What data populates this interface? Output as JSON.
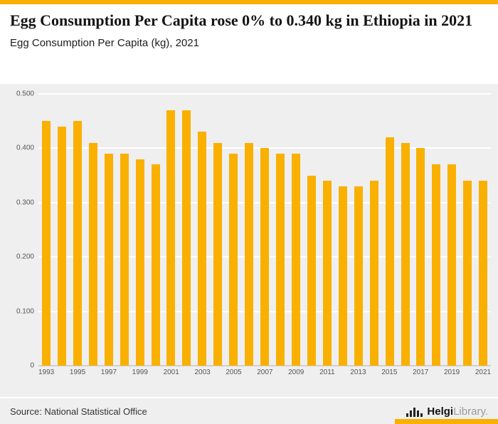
{
  "page": {
    "accent_color": "#F9B000",
    "title": "Egg Consumption Per Capita rose 0% to 0.340 kg in Ethiopia in 2021",
    "subtitle": "Egg Consumption Per Capita (kg), 2021",
    "source": "Source: National Statistical Office",
    "logo": {
      "bold": "Helgi",
      "light": "Library."
    }
  },
  "chart_data": {
    "type": "bar",
    "title": "Egg Consumption Per Capita rose 0% to 0.340 kg in Ethiopia in 2021",
    "subtitle": "Egg Consumption Per Capita (kg), 2021",
    "xlabel": "",
    "ylabel": "",
    "ylim": [
      0,
      0.5
    ],
    "yticks": [
      0,
      0.1,
      0.2,
      0.3,
      0.4,
      0.5
    ],
    "ytick_labels": [
      "0",
      "0.100",
      "0.200",
      "0.300",
      "0.400",
      "0.500"
    ],
    "grid": true,
    "plot_bg": "#EFEFEF",
    "bar_color": "#F9B000",
    "categories": [
      1993,
      1994,
      1995,
      1996,
      1997,
      1998,
      1999,
      2000,
      2001,
      2002,
      2003,
      2004,
      2005,
      2006,
      2007,
      2008,
      2009,
      2010,
      2011,
      2012,
      2013,
      2014,
      2015,
      2016,
      2017,
      2018,
      2019,
      2020,
      2021
    ],
    "values": [
      0.45,
      0.44,
      0.45,
      0.41,
      0.39,
      0.39,
      0.38,
      0.37,
      0.47,
      0.47,
      0.43,
      0.41,
      0.39,
      0.41,
      0.4,
      0.39,
      0.39,
      0.35,
      0.34,
      0.33,
      0.33,
      0.34,
      0.42,
      0.41,
      0.4,
      0.37,
      0.37,
      0.34,
      0.34
    ],
    "xtick_labels_shown": [
      1993,
      1995,
      1997,
      1999,
      2001,
      2003,
      2005,
      2007,
      2009,
      2011,
      2013,
      2015,
      2017,
      2019,
      2021
    ]
  }
}
